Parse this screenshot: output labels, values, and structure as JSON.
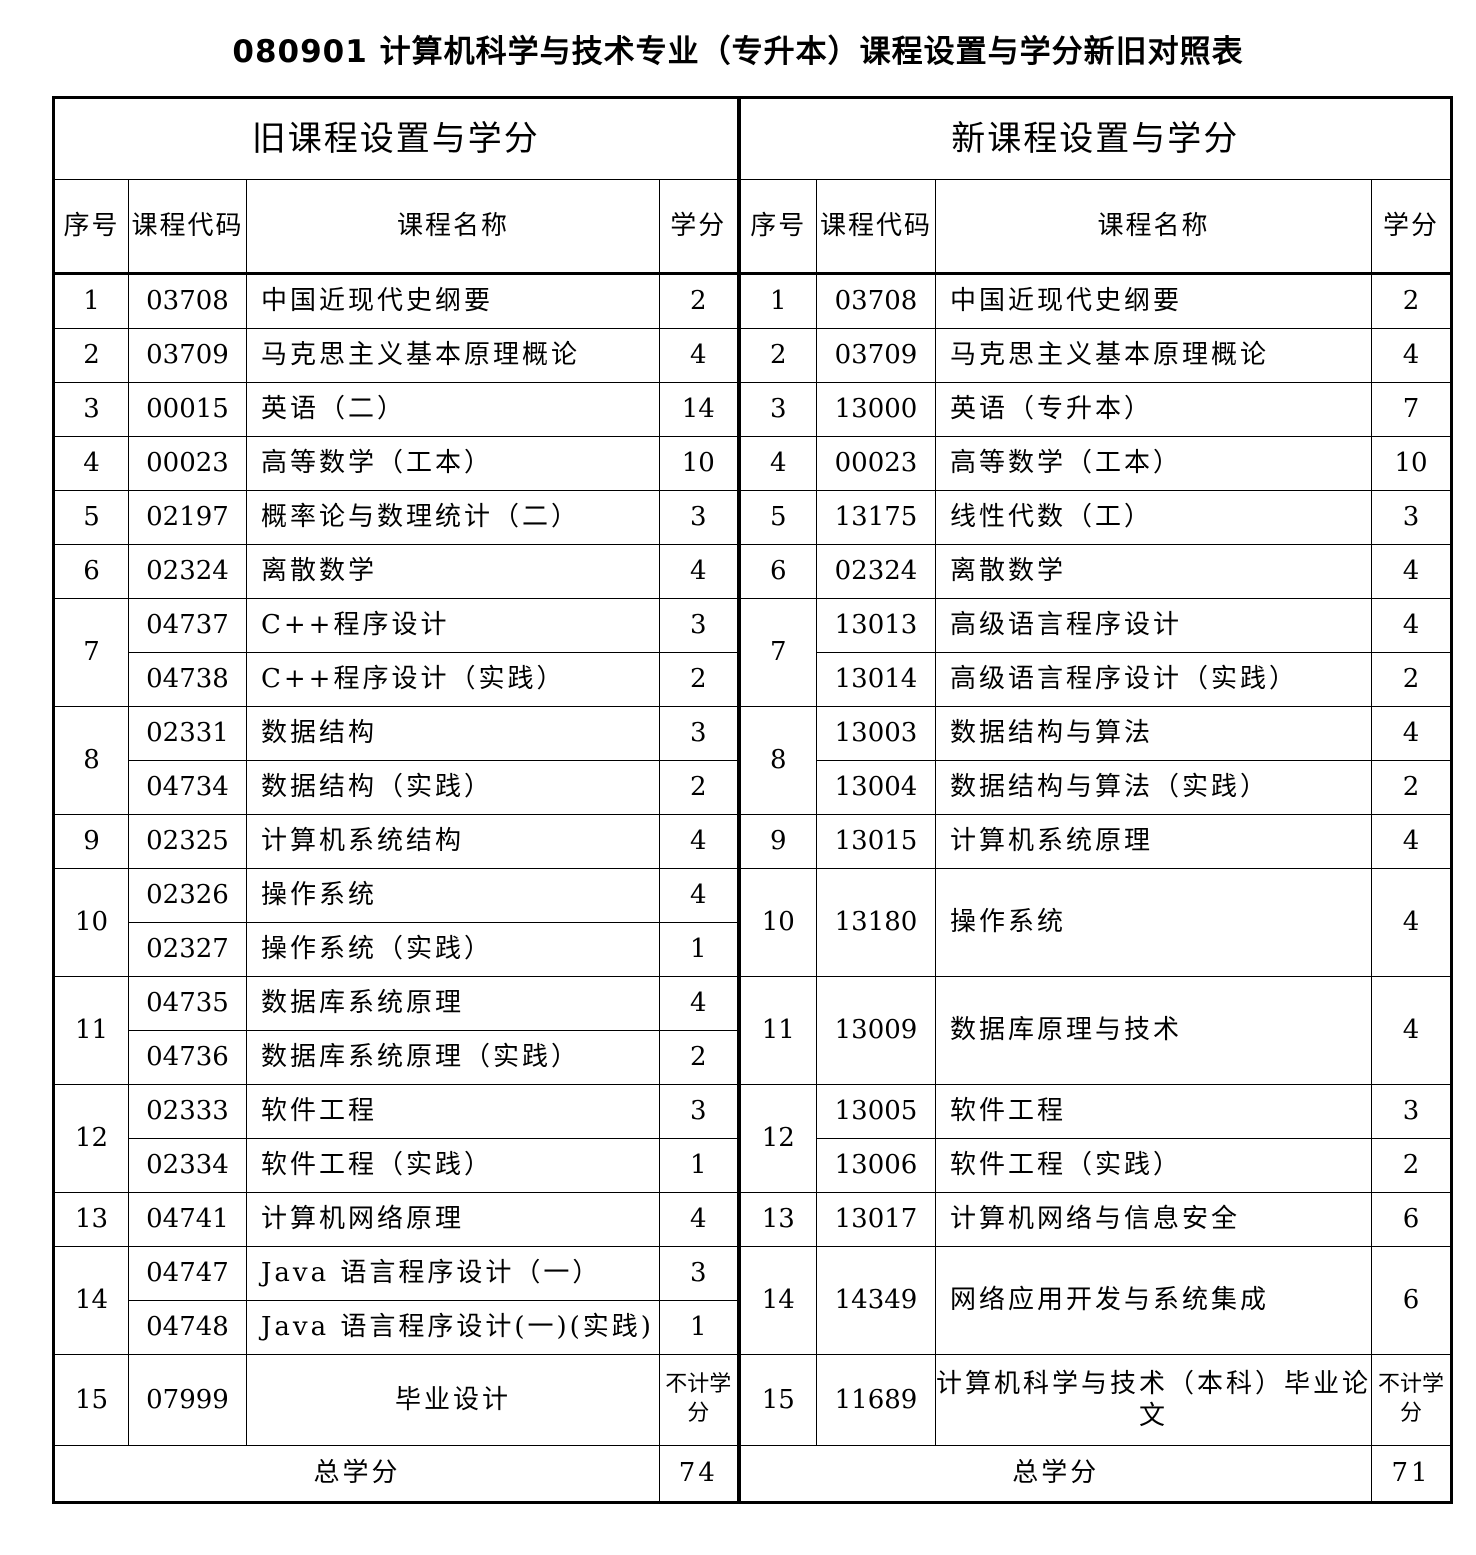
{
  "title": "080901 计算机科学与技术专业（专升本）课程设置与学分新旧对照表",
  "headers": {
    "old_group": "旧课程设置与学分",
    "new_group": "新课程设置与学分",
    "seq": "序号",
    "code": "课程代码",
    "name": "课程名称",
    "credit": "学分"
  },
  "old": [
    {
      "seq": "1",
      "courses": [
        {
          "code": "03708",
          "name": "中国近现代史纲要",
          "credit": "2"
        }
      ]
    },
    {
      "seq": "2",
      "courses": [
        {
          "code": "03709",
          "name": "马克思主义基本原理概论",
          "credit": "4"
        }
      ]
    },
    {
      "seq": "3",
      "courses": [
        {
          "code": "00015",
          "name": "英语（二）",
          "credit": "14"
        }
      ]
    },
    {
      "seq": "4",
      "courses": [
        {
          "code": "00023",
          "name": "高等数学（工本）",
          "credit": "10"
        }
      ]
    },
    {
      "seq": "5",
      "courses": [
        {
          "code": "02197",
          "name": "概率论与数理统计（二）",
          "credit": "3"
        }
      ]
    },
    {
      "seq": "6",
      "courses": [
        {
          "code": "02324",
          "name": "离散数学",
          "credit": "4"
        }
      ]
    },
    {
      "seq": "7",
      "courses": [
        {
          "code": "04737",
          "name": "C++程序设计",
          "credit": "3"
        },
        {
          "code": "04738",
          "name": "C++程序设计（实践）",
          "credit": "2"
        }
      ]
    },
    {
      "seq": "8",
      "courses": [
        {
          "code": "02331",
          "name": "数据结构",
          "credit": "3"
        },
        {
          "code": "04734",
          "name": "数据结构（实践）",
          "credit": "2"
        }
      ]
    },
    {
      "seq": "9",
      "courses": [
        {
          "code": "02325",
          "name": "计算机系统结构",
          "credit": "4"
        }
      ]
    },
    {
      "seq": "10",
      "courses": [
        {
          "code": "02326",
          "name": "操作系统",
          "credit": "4"
        },
        {
          "code": "02327",
          "name": "操作系统（实践）",
          "credit": "1"
        }
      ]
    },
    {
      "seq": "11",
      "courses": [
        {
          "code": "04735",
          "name": "数据库系统原理",
          "credit": "4"
        },
        {
          "code": "04736",
          "name": "数据库系统原理（实践）",
          "credit": "2"
        }
      ]
    },
    {
      "seq": "12",
      "courses": [
        {
          "code": "02333",
          "name": "软件工程",
          "credit": "3"
        },
        {
          "code": "02334",
          "name": "软件工程（实践）",
          "credit": "1"
        }
      ]
    },
    {
      "seq": "13",
      "courses": [
        {
          "code": "04741",
          "name": "计算机网络原理",
          "credit": "4"
        }
      ]
    },
    {
      "seq": "14",
      "courses": [
        {
          "code": "04747",
          "name": "Java 语言程序设计（一）",
          "credit": "3"
        },
        {
          "code": "04748",
          "name": "Java 语言程序设计(一)(实践)",
          "credit": "1"
        }
      ]
    },
    {
      "seq": "15",
      "courses": [
        {
          "code": "07999",
          "name": "毕业设计",
          "credit": "不计学分"
        }
      ]
    }
  ],
  "new": [
    {
      "seq": "1",
      "courses": [
        {
          "code": "03708",
          "name": "中国近现代史纲要",
          "credit": "2"
        }
      ]
    },
    {
      "seq": "2",
      "courses": [
        {
          "code": "03709",
          "name": "马克思主义基本原理概论",
          "credit": "4"
        }
      ]
    },
    {
      "seq": "3",
      "courses": [
        {
          "code": "13000",
          "name": "英语（专升本）",
          "credit": "7"
        }
      ]
    },
    {
      "seq": "4",
      "courses": [
        {
          "code": "00023",
          "name": "高等数学（工本）",
          "credit": "10"
        }
      ]
    },
    {
      "seq": "5",
      "courses": [
        {
          "code": "13175",
          "name": "线性代数（工）",
          "credit": "3"
        }
      ]
    },
    {
      "seq": "6",
      "courses": [
        {
          "code": "02324",
          "name": "离散数学",
          "credit": "4"
        }
      ]
    },
    {
      "seq": "7",
      "courses": [
        {
          "code": "13013",
          "name": "高级语言程序设计",
          "credit": "4"
        },
        {
          "code": "13014",
          "name": "高级语言程序设计（实践）",
          "credit": "2"
        }
      ]
    },
    {
      "seq": "8",
      "courses": [
        {
          "code": "13003",
          "name": "数据结构与算法",
          "credit": "4"
        },
        {
          "code": "13004",
          "name": "数据结构与算法（实践）",
          "credit": "2"
        }
      ]
    },
    {
      "seq": "9",
      "courses": [
        {
          "code": "13015",
          "name": "计算机系统原理",
          "credit": "4"
        }
      ]
    },
    {
      "seq": "10",
      "courses": [
        {
          "code": "13180",
          "name": "操作系统",
          "credit": "4"
        }
      ]
    },
    {
      "seq": "11",
      "courses": [
        {
          "code": "13009",
          "name": "数据库原理与技术",
          "credit": "4"
        }
      ]
    },
    {
      "seq": "12",
      "courses": [
        {
          "code": "13005",
          "name": "软件工程",
          "credit": "3"
        },
        {
          "code": "13006",
          "name": "软件工程（实践）",
          "credit": "2"
        }
      ]
    },
    {
      "seq": "13",
      "courses": [
        {
          "code": "13017",
          "name": "计算机网络与信息安全",
          "credit": "6"
        }
      ]
    },
    {
      "seq": "14",
      "courses": [
        {
          "code": "14349",
          "name": "网络应用开发与系统集成",
          "credit": "6"
        }
      ]
    },
    {
      "seq": "15",
      "courses": [
        {
          "code": "11689",
          "name": "计算机科学与技术（本科）毕业论文",
          "credit": "不计学分"
        }
      ]
    }
  ],
  "totals": {
    "label": "总学分",
    "old": "74",
    "new": "71"
  }
}
